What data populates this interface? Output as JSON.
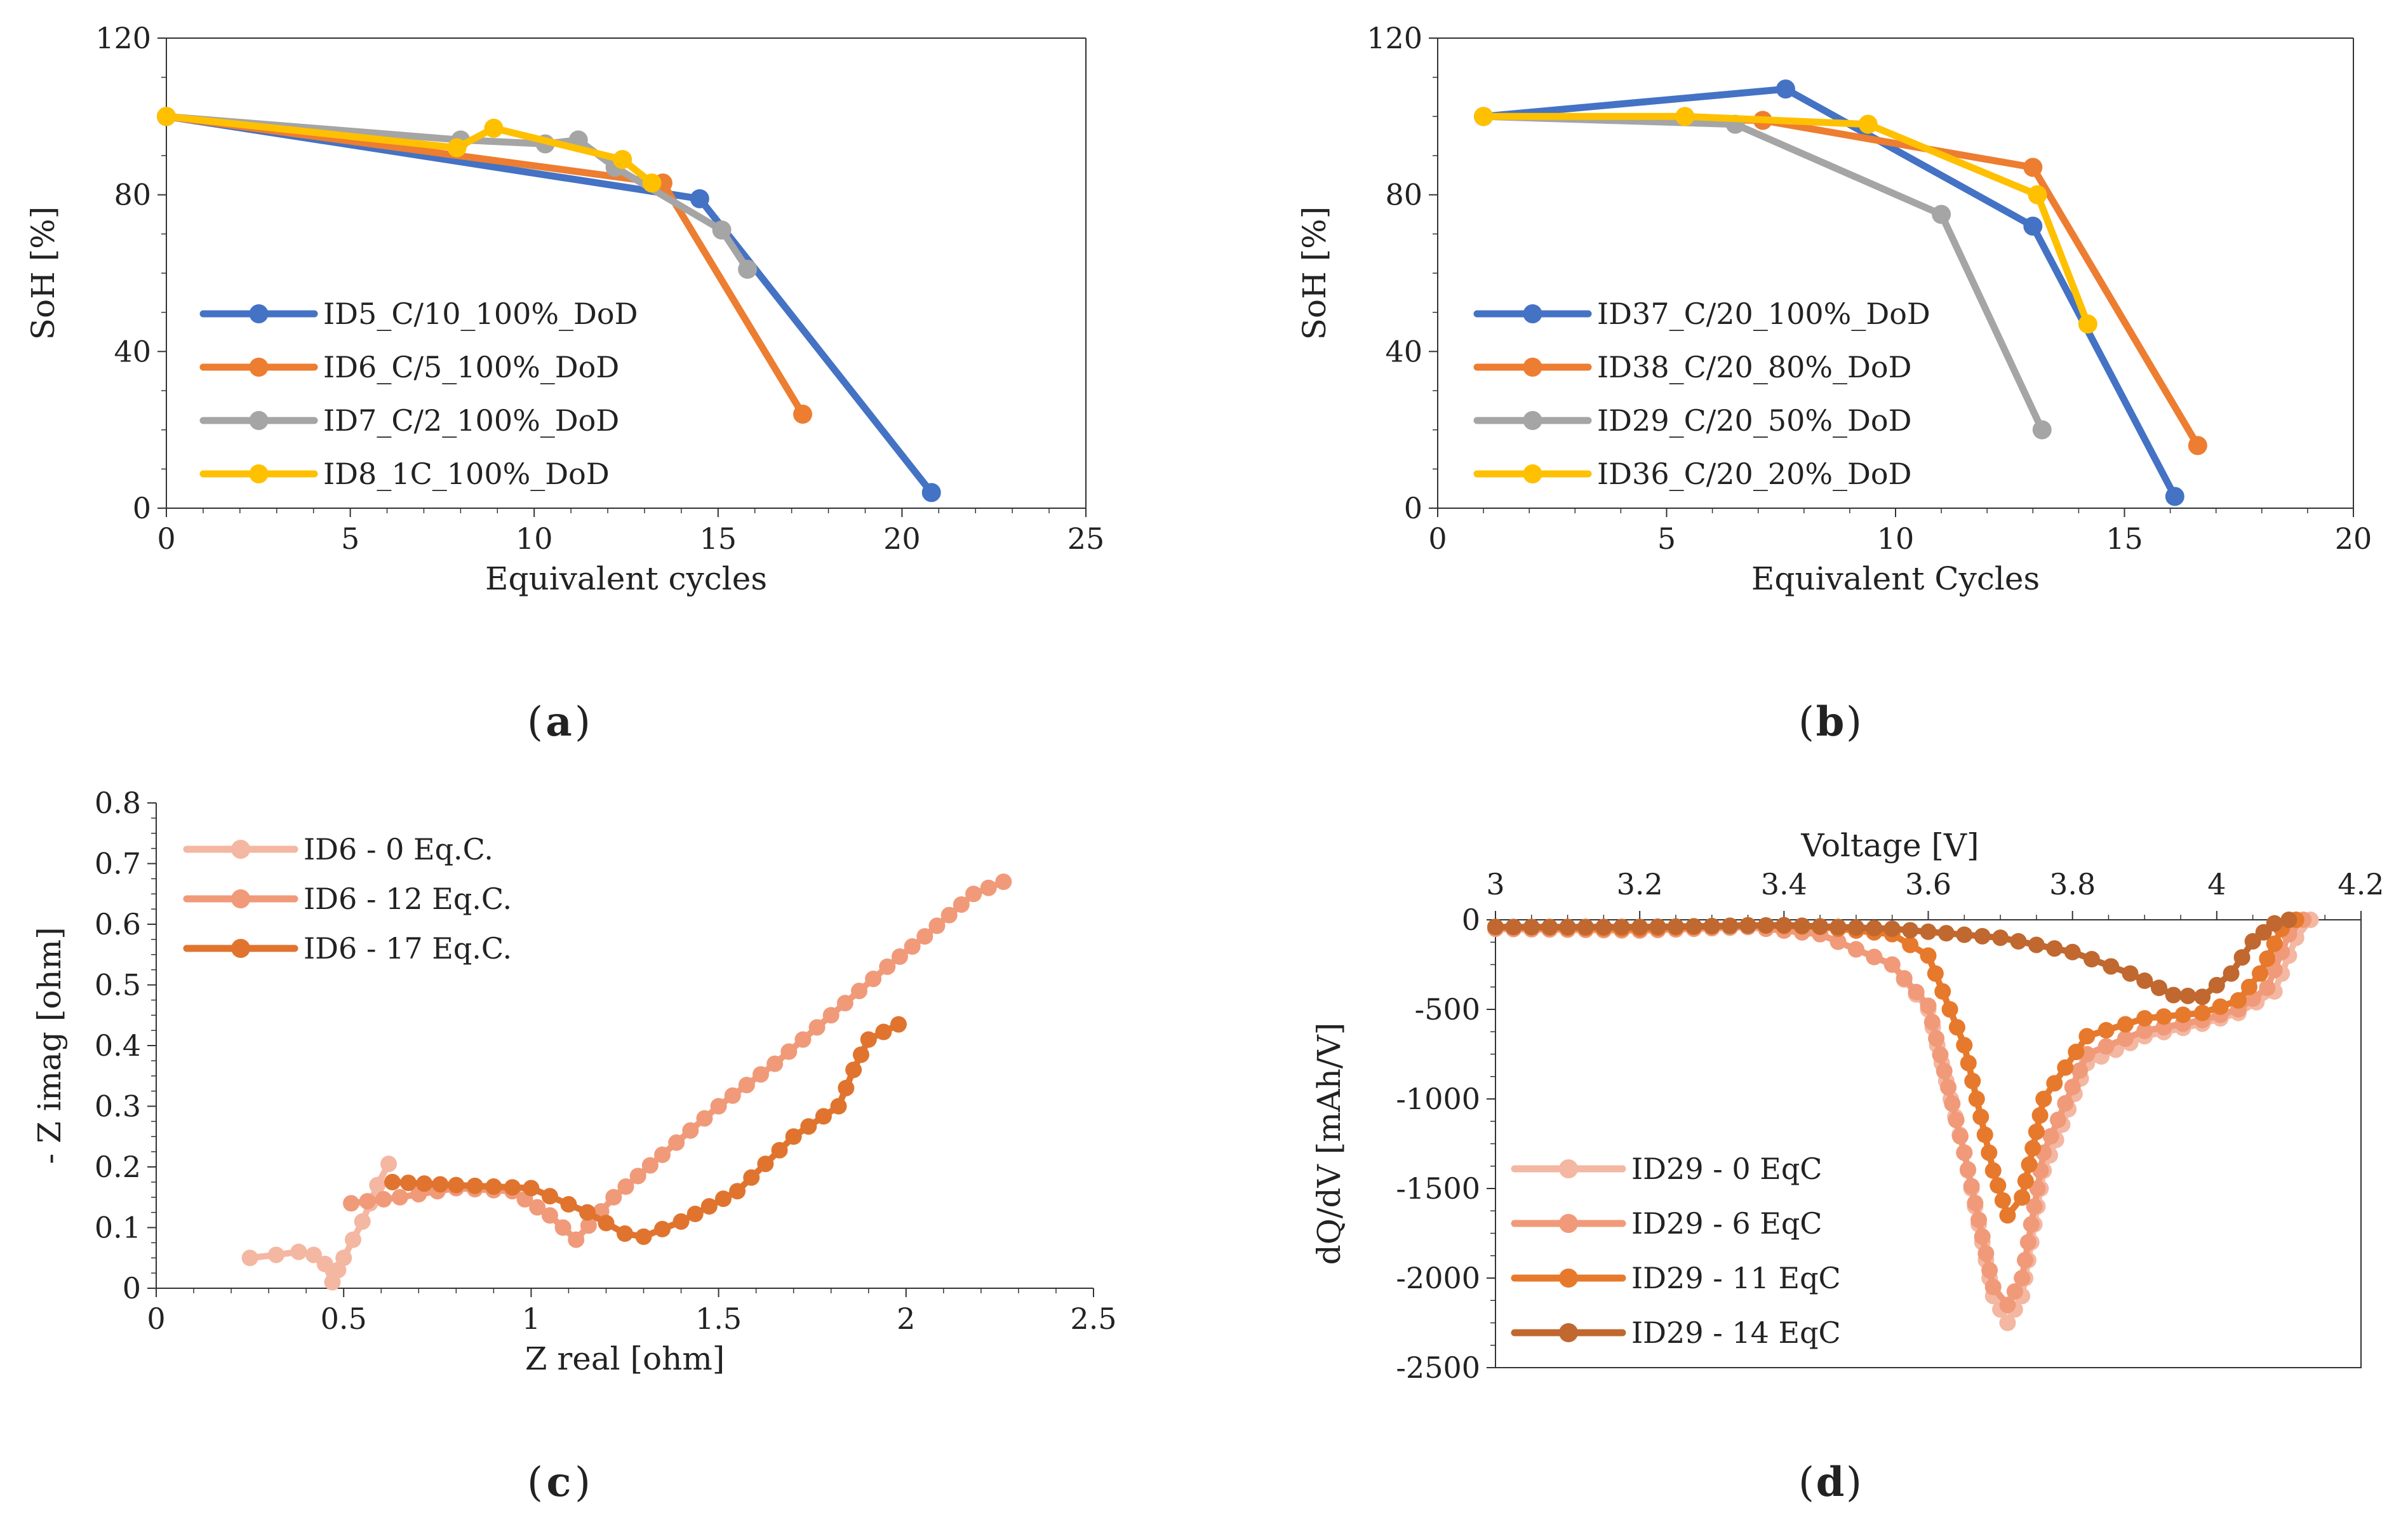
{
  "colors": {
    "blue": "#4472C4",
    "orange": "#ED7D31",
    "gray": "#A5A5A5",
    "yellow": "#FFC000",
    "c_light": "#F4B7A2",
    "c_mid": "#F09A7A",
    "c_dark": "#E0742F",
    "d_0": "#F4B7A2",
    "d_6": "#F09A7A",
    "d_11": "#E7792C",
    "d_14": "#C0682F"
  },
  "chart_data": [
    {
      "panel": "a",
      "caption": "a",
      "type": "line",
      "xlabel": "Equivalent cycles",
      "ylabel": "SoH [%]",
      "xlim": [
        0,
        25
      ],
      "ylim": [
        0,
        120
      ],
      "xticks": [
        "0",
        "5",
        "10",
        "15",
        "20",
        "25"
      ],
      "yticks": [
        "0",
        "40",
        "80",
        "120"
      ],
      "legend_position": "bottom-left",
      "series": [
        {
          "name": "ID5_C/10_100%_DoD",
          "color": "blue",
          "x": [
            0,
            14.5,
            20.8
          ],
          "y": [
            100,
            79,
            4
          ]
        },
        {
          "name": "ID6_C/5_100%_DoD",
          "color": "orange",
          "x": [
            0,
            13.5,
            17.3
          ],
          "y": [
            100,
            83,
            24
          ]
        },
        {
          "name": "ID7_C/2_100%_DoD",
          "color": "gray",
          "x": [
            0,
            8,
            10.3,
            11.2,
            12.2,
            15.1,
            15.8
          ],
          "y": [
            100,
            94,
            93,
            94,
            87,
            71,
            61
          ]
        },
        {
          "name": "ID8_1C_100%_DoD",
          "color": "yellow",
          "x": [
            0,
            7.9,
            8.9,
            12.4,
            13.2
          ],
          "y": [
            100,
            92,
            97,
            89,
            83
          ]
        }
      ]
    },
    {
      "panel": "b",
      "caption": "b",
      "type": "line",
      "xlabel": "Equivalent Cycles",
      "ylabel": "SoH [%]",
      "xlim": [
        0,
        20
      ],
      "ylim": [
        0,
        120
      ],
      "xticks": [
        "0",
        "5",
        "10",
        "15",
        "20"
      ],
      "yticks": [
        "0",
        "40",
        "80",
        "120"
      ],
      "legend_position": "bottom-left",
      "series": [
        {
          "name": "ID37_C/20_100%_DoD",
          "color": "blue",
          "x": [
            1,
            7.6,
            13,
            16.1
          ],
          "y": [
            100,
            107,
            72,
            3
          ]
        },
        {
          "name": "ID38_C/20_80%_DoD",
          "color": "orange",
          "x": [
            1,
            7.1,
            13,
            16.6
          ],
          "y": [
            100,
            99,
            87,
            16
          ]
        },
        {
          "name": "ID29_C/20_50%_DoD",
          "color": "gray",
          "x": [
            1,
            6.5,
            11,
            13.2
          ],
          "y": [
            100,
            98,
            75,
            20
          ]
        },
        {
          "name": "ID36_C/20_20%_DoD",
          "color": "yellow",
          "x": [
            1,
            5.4,
            9.4,
            13.1,
            14.2
          ],
          "y": [
            100,
            100,
            98,
            80,
            47
          ]
        }
      ]
    },
    {
      "panel": "c",
      "caption": "c",
      "type": "line",
      "xlabel": "Z real [ohm]",
      "ylabel": "- Z imag [ohm]",
      "xlim": [
        0,
        2.5
      ],
      "ylim": [
        0,
        0.8
      ],
      "xticks": [
        "0",
        "0.5",
        "1",
        "1.5",
        "2",
        "2.5"
      ],
      "yticks": [
        "0",
        "0.1",
        "0.2",
        "0.3",
        "0.4",
        "0.5",
        "0.6",
        "0.7",
        "0.8"
      ],
      "legend_position": "top-left",
      "series": [
        {
          "name": "ID6 - 0 Eq.C.",
          "color": "c_light",
          "x": [
            0.25,
            0.32,
            0.38,
            0.42,
            0.45,
            0.47,
            0.5,
            0.55,
            0.59,
            0.62
          ],
          "y": [
            0.05,
            0.055,
            0.06,
            0.055,
            0.04,
            0.01,
            0.05,
            0.11,
            0.17,
            0.205
          ]
        },
        {
          "name": "ID6 - 12 Eq.C.",
          "color": "c_mid",
          "x": [
            0.52,
            0.65,
            0.8,
            0.95,
            1.05,
            1.12,
            1.22,
            1.35,
            1.5,
            1.65,
            1.8,
            1.95,
            2.05,
            2.18,
            2.26
          ],
          "y": [
            0.14,
            0.15,
            0.165,
            0.16,
            0.12,
            0.08,
            0.15,
            0.22,
            0.3,
            0.37,
            0.45,
            0.53,
            0.58,
            0.65,
            0.67
          ]
        },
        {
          "name": "ID6 - 17 Eq.C.",
          "color": "c_dark",
          "x": [
            0.63,
            0.8,
            1.0,
            1.15,
            1.25,
            1.3,
            1.4,
            1.55,
            1.7,
            1.82,
            1.86,
            1.9,
            1.98
          ],
          "y": [
            0.175,
            0.17,
            0.165,
            0.125,
            0.09,
            0.085,
            0.11,
            0.16,
            0.25,
            0.3,
            0.36,
            0.41,
            0.435
          ]
        }
      ]
    },
    {
      "panel": "d",
      "caption": "d",
      "type": "line",
      "xlabel": "Voltage [V]",
      "ylabel": "dQ/dV [mAh/V]",
      "xlim": [
        3,
        4.2
      ],
      "ylim": [
        -2500,
        0
      ],
      "xticks": [
        "3",
        "3.2",
        "3.4",
        "3.6",
        "3.8",
        "4",
        "4.2"
      ],
      "yticks": [
        "0",
        "-500",
        "-1000",
        "-1500",
        "-2000",
        "-2500"
      ],
      "legend_position": "bottom-left",
      "series": [
        {
          "name": "ID29 - 0 EqC",
          "color": "d_0",
          "x": [
            3.0,
            3.2,
            3.35,
            3.45,
            3.55,
            3.6,
            3.65,
            3.69,
            3.71,
            3.73,
            3.76,
            3.82,
            3.9,
            3.98,
            4.03,
            4.08,
            4.11,
            4.13
          ],
          "y": [
            -50,
            -60,
            -40,
            -80,
            -250,
            -500,
            -1300,
            -2100,
            -2250,
            -2100,
            -1400,
            -800,
            -650,
            -580,
            -520,
            -400,
            -100,
            0
          ]
        },
        {
          "name": "ID29 - 6 EqC",
          "color": "d_6",
          "x": [
            3.0,
            3.2,
            3.35,
            3.45,
            3.55,
            3.6,
            3.65,
            3.69,
            3.71,
            3.73,
            3.76,
            3.82,
            3.9,
            3.98,
            4.03,
            4.07,
            4.1,
            4.12
          ],
          "y": [
            -50,
            -60,
            -40,
            -80,
            -250,
            -480,
            -1300,
            -2050,
            -2150,
            -2000,
            -1300,
            -750,
            -620,
            -560,
            -500,
            -380,
            -80,
            0
          ]
        },
        {
          "name": "ID29 - 11 EqC",
          "color": "d_11",
          "x": [
            3.0,
            3.2,
            3.35,
            3.45,
            3.55,
            3.6,
            3.65,
            3.69,
            3.71,
            3.73,
            3.76,
            3.82,
            3.9,
            3.98,
            4.03,
            4.06,
            4.09,
            4.11
          ],
          "y": [
            -40,
            -50,
            -30,
            -40,
            -80,
            -200,
            -700,
            -1400,
            -1650,
            -1550,
            -1000,
            -650,
            -550,
            -520,
            -450,
            -300,
            -50,
            0
          ]
        },
        {
          "name": "ID29 - 14 EqC",
          "color": "d_14",
          "x": [
            3.0,
            3.2,
            3.4,
            3.55,
            3.7,
            3.8,
            3.88,
            3.94,
            3.98,
            4.02,
            4.05,
            4.08,
            4.1
          ],
          "y": [
            -40,
            -40,
            -30,
            -50,
            -100,
            -180,
            -300,
            -420,
            -430,
            -300,
            -120,
            -20,
            0
          ]
        }
      ]
    }
  ]
}
